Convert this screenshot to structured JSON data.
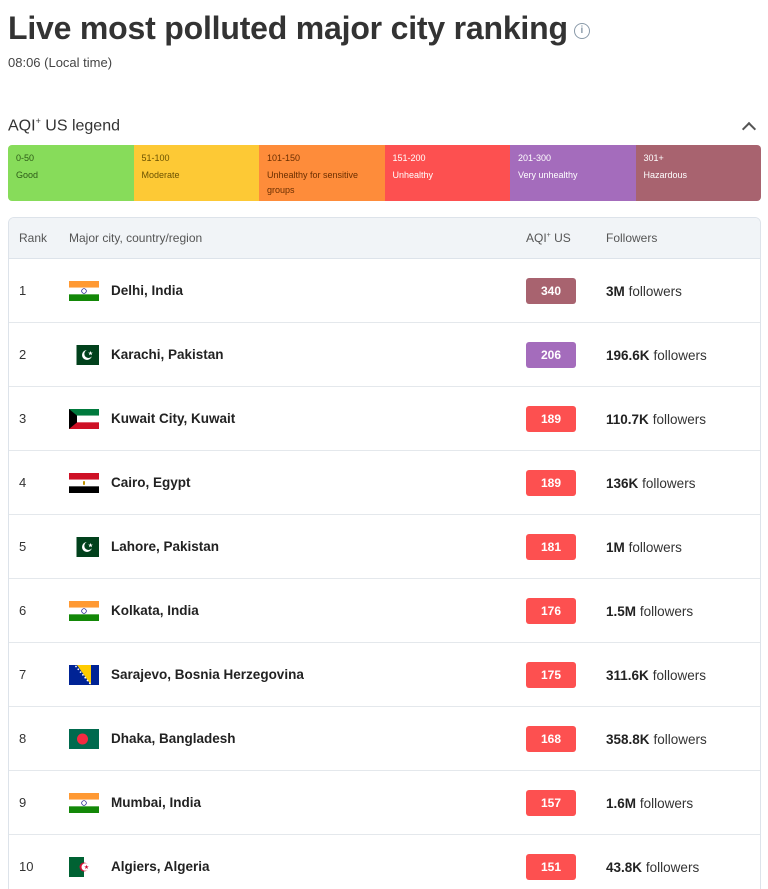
{
  "header": {
    "title": "Live most polluted major city ranking",
    "local_time": "08:06 (Local time)",
    "info_icon": "info-icon"
  },
  "legend": {
    "title": "AQI",
    "title_sup": "+",
    "title_suffix": " US legend",
    "segments": [
      {
        "range": "0-50",
        "label": "Good",
        "color": "#87dc5a"
      },
      {
        "range": "51-100",
        "label": "Moderate",
        "color": "#fdc935"
      },
      {
        "range": "101-150",
        "label": "Unhealthy for sensitive groups",
        "color": "#fe8c3a"
      },
      {
        "range": "151-200",
        "label": "Unhealthy",
        "color": "#fd5050"
      },
      {
        "range": "201-300",
        "label": "Very unhealthy",
        "color": "#a46cbc"
      },
      {
        "range": "301+",
        "label": "Hazardous",
        "color": "#a8636f"
      }
    ]
  },
  "table": {
    "headers": {
      "rank": "Rank",
      "city": "Major city, country/region",
      "aqi": "AQI",
      "aqi_sup": "+",
      "aqi_suffix": " US",
      "followers": "Followers"
    },
    "followers_word": "followers",
    "rows": [
      {
        "rank": "1",
        "city": "Delhi, India",
        "flag": "india",
        "aqi": "340",
        "aqi_color": "#a8636f",
        "followers": "3M"
      },
      {
        "rank": "2",
        "city": "Karachi, Pakistan",
        "flag": "pakistan",
        "aqi": "206",
        "aqi_color": "#a46cbc",
        "followers": "196.6K"
      },
      {
        "rank": "3",
        "city": "Kuwait City, Kuwait",
        "flag": "kuwait",
        "aqi": "189",
        "aqi_color": "#fd5050",
        "followers": "110.7K"
      },
      {
        "rank": "4",
        "city": "Cairo, Egypt",
        "flag": "egypt",
        "aqi": "189",
        "aqi_color": "#fd5050",
        "followers": "136K"
      },
      {
        "rank": "5",
        "city": "Lahore, Pakistan",
        "flag": "pakistan",
        "aqi": "181",
        "aqi_color": "#fd5050",
        "followers": "1M"
      },
      {
        "rank": "6",
        "city": "Kolkata, India",
        "flag": "india",
        "aqi": "176",
        "aqi_color": "#fd5050",
        "followers": "1.5M"
      },
      {
        "rank": "7",
        "city": "Sarajevo, Bosnia Herzegovina",
        "flag": "bosnia",
        "aqi": "175",
        "aqi_color": "#fd5050",
        "followers": "311.6K"
      },
      {
        "rank": "8",
        "city": "Dhaka, Bangladesh",
        "flag": "bangladesh",
        "aqi": "168",
        "aqi_color": "#fd5050",
        "followers": "358.8K"
      },
      {
        "rank": "9",
        "city": "Mumbai, India",
        "flag": "india",
        "aqi": "157",
        "aqi_color": "#fd5050",
        "followers": "1.6M"
      },
      {
        "rank": "10",
        "city": "Algiers, Algeria",
        "flag": "algeria",
        "aqi": "151",
        "aqi_color": "#fd5050",
        "followers": "43.8K"
      }
    ]
  }
}
